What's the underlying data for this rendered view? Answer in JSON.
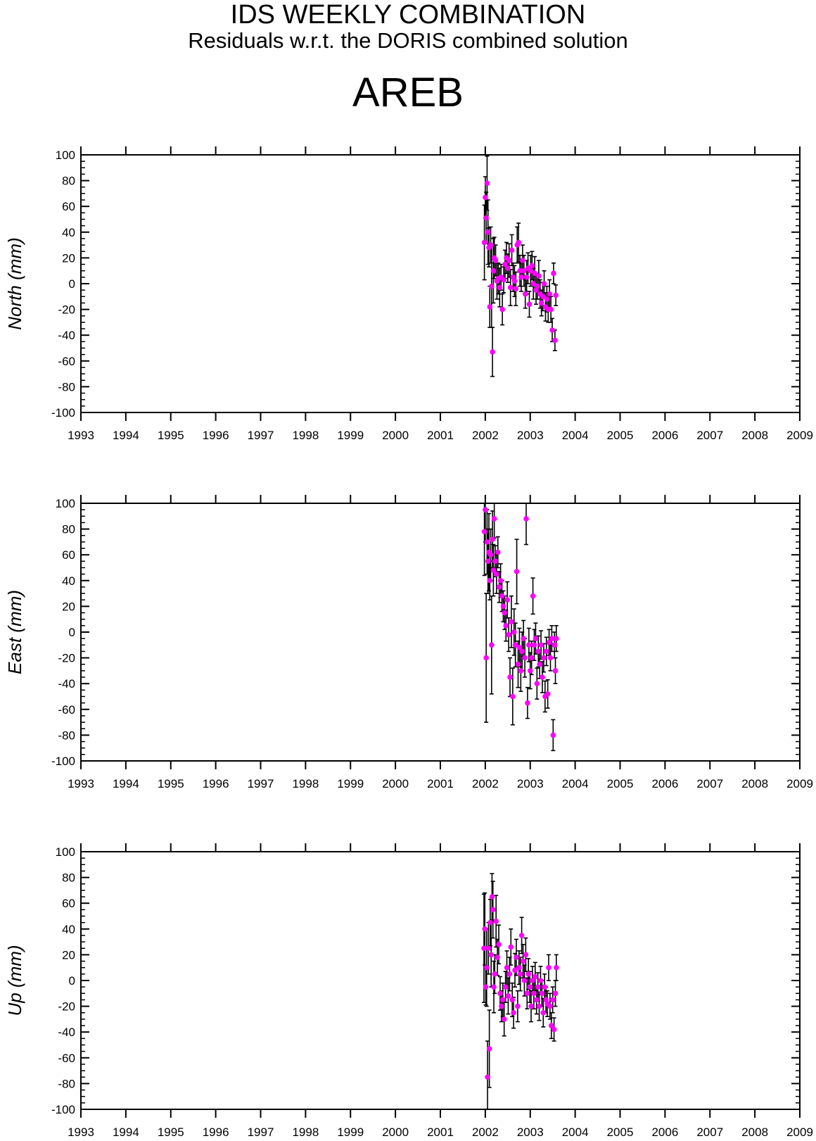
{
  "header": {
    "title": "IDS WEEKLY COMBINATION",
    "subtitle": "Residuals w.r.t. the DORIS combined solution",
    "station": "AREB"
  },
  "colors": {
    "point": "#ff00ff",
    "errorbar": "#000000",
    "axis": "#000000"
  },
  "chart_data": [
    {
      "type": "scatter",
      "ylabel": "North (mm)",
      "xlim": [
        1993,
        2009
      ],
      "ylim": [
        -100,
        100
      ],
      "xticks": [
        "1993",
        "1994",
        "1995",
        "1996",
        "1997",
        "1998",
        "1999",
        "2000",
        "2001",
        "2002",
        "2003",
        "2004",
        "2005",
        "2006",
        "2007",
        "2008",
        "2009"
      ],
      "yticks": [
        "-100",
        "-80",
        "-60",
        "-40",
        "-20",
        "0",
        "20",
        "40",
        "60",
        "80",
        "100"
      ],
      "grid": false,
      "points": [
        {
          "x": 2001.98,
          "y": 32,
          "err": 29
        },
        {
          "x": 2002.0,
          "y": 67,
          "err": 16
        },
        {
          "x": 2002.02,
          "y": 51,
          "err": 20
        },
        {
          "x": 2002.04,
          "y": 78,
          "err": 21
        },
        {
          "x": 2002.06,
          "y": 40,
          "err": 25
        },
        {
          "x": 2002.08,
          "y": 28,
          "err": 15
        },
        {
          "x": 2002.1,
          "y": -18,
          "err": 16
        },
        {
          "x": 2002.12,
          "y": 30,
          "err": 14
        },
        {
          "x": 2002.14,
          "y": -2,
          "err": 32
        },
        {
          "x": 2002.16,
          "y": -53,
          "err": 19
        },
        {
          "x": 2002.18,
          "y": 10,
          "err": 25
        },
        {
          "x": 2002.2,
          "y": 20,
          "err": 16
        },
        {
          "x": 2002.23,
          "y": 18,
          "err": 12
        },
        {
          "x": 2002.26,
          "y": 2,
          "err": 14
        },
        {
          "x": 2002.29,
          "y": 4,
          "err": 12
        },
        {
          "x": 2002.32,
          "y": -3,
          "err": 15
        },
        {
          "x": 2002.35,
          "y": 5,
          "err": 10
        },
        {
          "x": 2002.38,
          "y": -20,
          "err": 12
        },
        {
          "x": 2002.41,
          "y": 3,
          "err": 10
        },
        {
          "x": 2002.44,
          "y": 15,
          "err": 11
        },
        {
          "x": 2002.47,
          "y": 20,
          "err": 12
        },
        {
          "x": 2002.5,
          "y": 12,
          "err": 11
        },
        {
          "x": 2002.53,
          "y": 18,
          "err": 13
        },
        {
          "x": 2002.56,
          "y": -3,
          "err": 14
        },
        {
          "x": 2002.59,
          "y": 26,
          "err": 12
        },
        {
          "x": 2002.62,
          "y": 5,
          "err": 11
        },
        {
          "x": 2002.65,
          "y": 2,
          "err": 12
        },
        {
          "x": 2002.68,
          "y": -4,
          "err": 13
        },
        {
          "x": 2002.71,
          "y": 30,
          "err": 14
        },
        {
          "x": 2002.74,
          "y": 32,
          "err": 15
        },
        {
          "x": 2002.77,
          "y": 10,
          "err": 12
        },
        {
          "x": 2002.8,
          "y": 5,
          "err": 11
        },
        {
          "x": 2002.83,
          "y": 18,
          "err": 12
        },
        {
          "x": 2002.86,
          "y": 10,
          "err": 12
        },
        {
          "x": 2002.89,
          "y": -8,
          "err": 11
        },
        {
          "x": 2002.92,
          "y": 5,
          "err": 13
        },
        {
          "x": 2002.95,
          "y": 12,
          "err": 12
        },
        {
          "x": 2002.98,
          "y": -16,
          "err": 10
        },
        {
          "x": 2003.01,
          "y": 10,
          "err": 12
        },
        {
          "x": 2003.04,
          "y": 14,
          "err": 11
        },
        {
          "x": 2003.07,
          "y": 0,
          "err": 12
        },
        {
          "x": 2003.1,
          "y": 8,
          "err": 13
        },
        {
          "x": 2003.13,
          "y": -5,
          "err": 11
        },
        {
          "x": 2003.16,
          "y": -2,
          "err": 10
        },
        {
          "x": 2003.19,
          "y": 6,
          "err": 12
        },
        {
          "x": 2003.22,
          "y": -8,
          "err": 11
        },
        {
          "x": 2003.25,
          "y": -15,
          "err": 10
        },
        {
          "x": 2003.28,
          "y": -10,
          "err": 11
        },
        {
          "x": 2003.31,
          "y": 0,
          "err": 10
        },
        {
          "x": 2003.34,
          "y": -18,
          "err": 11
        },
        {
          "x": 2003.37,
          "y": -12,
          "err": 10
        },
        {
          "x": 2003.4,
          "y": -20,
          "err": 10
        },
        {
          "x": 2003.43,
          "y": -8,
          "err": 11
        },
        {
          "x": 2003.46,
          "y": -20,
          "err": 10
        },
        {
          "x": 2003.49,
          "y": -36,
          "err": 9
        },
        {
          "x": 2003.52,
          "y": 8,
          "err": 8
        },
        {
          "x": 2003.55,
          "y": -44,
          "err": 8
        },
        {
          "x": 2003.57,
          "y": -9,
          "err": 8
        }
      ]
    },
    {
      "type": "scatter",
      "ylabel": "East (mm)",
      "xlim": [
        1993,
        2009
      ],
      "ylim": [
        -100,
        100
      ],
      "xticks": [
        "1993",
        "1994",
        "1995",
        "1996",
        "1997",
        "1998",
        "1999",
        "2000",
        "2001",
        "2002",
        "2003",
        "2004",
        "2005",
        "2006",
        "2007",
        "2008",
        "2009"
      ],
      "yticks": [
        "-100",
        "-80",
        "-60",
        "-40",
        "-20",
        "0",
        "20",
        "40",
        "60",
        "80",
        "100"
      ],
      "grid": false,
      "points": [
        {
          "x": 2001.98,
          "y": 78,
          "err": 34
        },
        {
          "x": 2002.0,
          "y": 95,
          "err": 25
        },
        {
          "x": 2002.02,
          "y": -20,
          "err": 50
        },
        {
          "x": 2002.04,
          "y": 70,
          "err": 25
        },
        {
          "x": 2002.06,
          "y": 55,
          "err": 25
        },
        {
          "x": 2002.08,
          "y": 62,
          "err": 30
        },
        {
          "x": 2002.1,
          "y": 40,
          "err": 15
        },
        {
          "x": 2002.12,
          "y": 60,
          "err": 20
        },
        {
          "x": 2002.14,
          "y": -10,
          "err": 38
        },
        {
          "x": 2002.16,
          "y": 72,
          "err": 22
        },
        {
          "x": 2002.18,
          "y": 48,
          "err": 20
        },
        {
          "x": 2002.2,
          "y": 88,
          "err": 15
        },
        {
          "x": 2002.22,
          "y": 55,
          "err": 12
        },
        {
          "x": 2002.25,
          "y": 45,
          "err": 15
        },
        {
          "x": 2002.28,
          "y": 62,
          "err": 12
        },
        {
          "x": 2002.31,
          "y": 35,
          "err": 12
        },
        {
          "x": 2002.34,
          "y": 40,
          "err": 13
        },
        {
          "x": 2002.37,
          "y": 28,
          "err": 12
        },
        {
          "x": 2002.4,
          "y": 20,
          "err": 12
        },
        {
          "x": 2002.43,
          "y": 15,
          "err": 13
        },
        {
          "x": 2002.46,
          "y": 5,
          "err": 12
        },
        {
          "x": 2002.49,
          "y": 25,
          "err": 14
        },
        {
          "x": 2002.52,
          "y": -2,
          "err": 13
        },
        {
          "x": 2002.55,
          "y": -35,
          "err": 15
        },
        {
          "x": 2002.58,
          "y": 8,
          "err": 20
        },
        {
          "x": 2002.61,
          "y": -50,
          "err": 22
        },
        {
          "x": 2002.64,
          "y": 0,
          "err": 18
        },
        {
          "x": 2002.67,
          "y": -10,
          "err": 17
        },
        {
          "x": 2002.7,
          "y": 47,
          "err": 25
        },
        {
          "x": 2002.73,
          "y": -25,
          "err": 18
        },
        {
          "x": 2002.76,
          "y": -12,
          "err": 15
        },
        {
          "x": 2002.79,
          "y": -30,
          "err": 16
        },
        {
          "x": 2002.82,
          "y": -15,
          "err": 15
        },
        {
          "x": 2002.85,
          "y": -5,
          "err": 14
        },
        {
          "x": 2002.88,
          "y": -20,
          "err": 15
        },
        {
          "x": 2002.91,
          "y": 88,
          "err": 20
        },
        {
          "x": 2002.94,
          "y": -55,
          "err": 12
        },
        {
          "x": 2002.97,
          "y": -10,
          "err": 13
        },
        {
          "x": 2003.0,
          "y": -30,
          "err": 14
        },
        {
          "x": 2003.03,
          "y": -20,
          "err": 13
        },
        {
          "x": 2003.06,
          "y": 28,
          "err": 14
        },
        {
          "x": 2003.09,
          "y": -10,
          "err": 12
        },
        {
          "x": 2003.12,
          "y": -5,
          "err": 12
        },
        {
          "x": 2003.15,
          "y": -40,
          "err": 12
        },
        {
          "x": 2003.18,
          "y": -15,
          "err": 12
        },
        {
          "x": 2003.21,
          "y": -25,
          "err": 11
        },
        {
          "x": 2003.24,
          "y": -10,
          "err": 11
        },
        {
          "x": 2003.27,
          "y": -35,
          "err": 12
        },
        {
          "x": 2003.3,
          "y": -20,
          "err": 11
        },
        {
          "x": 2003.33,
          "y": -50,
          "err": 12
        },
        {
          "x": 2003.36,
          "y": -15,
          "err": 11
        },
        {
          "x": 2003.39,
          "y": -48,
          "err": 11
        },
        {
          "x": 2003.42,
          "y": -8,
          "err": 10
        },
        {
          "x": 2003.45,
          "y": -20,
          "err": 10
        },
        {
          "x": 2003.48,
          "y": -5,
          "err": 10
        },
        {
          "x": 2003.51,
          "y": -80,
          "err": 12
        },
        {
          "x": 2003.54,
          "y": -10,
          "err": 10
        },
        {
          "x": 2003.56,
          "y": -30,
          "err": 10
        },
        {
          "x": 2003.58,
          "y": -5,
          "err": 10
        }
      ]
    },
    {
      "type": "scatter",
      "ylabel": "Up (mm)",
      "xlim": [
        1993,
        2009
      ],
      "ylim": [
        -100,
        100
      ],
      "xticks": [
        "1993",
        "1994",
        "1995",
        "1996",
        "1997",
        "1998",
        "1999",
        "2000",
        "2001",
        "2002",
        "2003",
        "2004",
        "2005",
        "2006",
        "2007",
        "2008",
        "2009"
      ],
      "yticks": [
        "-100",
        "-80",
        "-60",
        "-40",
        "-20",
        "0",
        "20",
        "40",
        "60",
        "80",
        "100"
      ],
      "grid": false,
      "points": [
        {
          "x": 2001.97,
          "y": 25,
          "err": 42
        },
        {
          "x": 2001.99,
          "y": 40,
          "err": 28
        },
        {
          "x": 2002.01,
          "y": -5,
          "err": 14
        },
        {
          "x": 2002.03,
          "y": 10,
          "err": 30
        },
        {
          "x": 2002.05,
          "y": -75,
          "err": 28
        },
        {
          "x": 2002.07,
          "y": 25,
          "err": 20
        },
        {
          "x": 2002.09,
          "y": -53,
          "err": 30
        },
        {
          "x": 2002.11,
          "y": 45,
          "err": 18
        },
        {
          "x": 2002.13,
          "y": 20,
          "err": 25
        },
        {
          "x": 2002.15,
          "y": 65,
          "err": 18
        },
        {
          "x": 2002.17,
          "y": 55,
          "err": 22
        },
        {
          "x": 2002.19,
          "y": -5,
          "err": 20
        },
        {
          "x": 2002.21,
          "y": 5,
          "err": 15
        },
        {
          "x": 2002.24,
          "y": 46,
          "err": 20
        },
        {
          "x": 2002.27,
          "y": 18,
          "err": 14
        },
        {
          "x": 2002.3,
          "y": 28,
          "err": 15
        },
        {
          "x": 2002.33,
          "y": -10,
          "err": 13
        },
        {
          "x": 2002.36,
          "y": -20,
          "err": 12
        },
        {
          "x": 2002.39,
          "y": -15,
          "err": 13
        },
        {
          "x": 2002.42,
          "y": -30,
          "err": 13
        },
        {
          "x": 2002.45,
          "y": -5,
          "err": 12
        },
        {
          "x": 2002.48,
          "y": 10,
          "err": 13
        },
        {
          "x": 2002.51,
          "y": -12,
          "err": 14
        },
        {
          "x": 2002.54,
          "y": 5,
          "err": 13
        },
        {
          "x": 2002.57,
          "y": 26,
          "err": 14
        },
        {
          "x": 2002.6,
          "y": -15,
          "err": 13
        },
        {
          "x": 2002.63,
          "y": -25,
          "err": 12
        },
        {
          "x": 2002.66,
          "y": 8,
          "err": 13
        },
        {
          "x": 2002.69,
          "y": 18,
          "err": 14
        },
        {
          "x": 2002.72,
          "y": -20,
          "err": 12
        },
        {
          "x": 2002.75,
          "y": 10,
          "err": 13
        },
        {
          "x": 2002.78,
          "y": 5,
          "err": 13
        },
        {
          "x": 2002.81,
          "y": 35,
          "err": 14
        },
        {
          "x": 2002.84,
          "y": 15,
          "err": 13
        },
        {
          "x": 2002.87,
          "y": 0,
          "err": 12
        },
        {
          "x": 2002.9,
          "y": 20,
          "err": 13
        },
        {
          "x": 2002.93,
          "y": -10,
          "err": 12
        },
        {
          "x": 2002.96,
          "y": 5,
          "err": 12
        },
        {
          "x": 2002.99,
          "y": -5,
          "err": 12
        },
        {
          "x": 2003.02,
          "y": -20,
          "err": 12
        },
        {
          "x": 2003.05,
          "y": 0,
          "err": 11
        },
        {
          "x": 2003.08,
          "y": -10,
          "err": 12
        },
        {
          "x": 2003.11,
          "y": 3,
          "err": 11
        },
        {
          "x": 2003.14,
          "y": -15,
          "err": 11
        },
        {
          "x": 2003.17,
          "y": -5,
          "err": 11
        },
        {
          "x": 2003.2,
          "y": -20,
          "err": 11
        },
        {
          "x": 2003.23,
          "y": 0,
          "err": 11
        },
        {
          "x": 2003.26,
          "y": -10,
          "err": 10
        },
        {
          "x": 2003.29,
          "y": -25,
          "err": 11
        },
        {
          "x": 2003.32,
          "y": -5,
          "err": 10
        },
        {
          "x": 2003.35,
          "y": -15,
          "err": 10
        },
        {
          "x": 2003.38,
          "y": -18,
          "err": 10
        },
        {
          "x": 2003.41,
          "y": 10,
          "err": 10
        },
        {
          "x": 2003.44,
          "y": -20,
          "err": 10
        },
        {
          "x": 2003.47,
          "y": -35,
          "err": 10
        },
        {
          "x": 2003.5,
          "y": -15,
          "err": 10
        },
        {
          "x": 2003.53,
          "y": -38,
          "err": 9
        },
        {
          "x": 2003.56,
          "y": -10,
          "err": 10
        },
        {
          "x": 2003.58,
          "y": 10,
          "err": 10
        }
      ]
    }
  ]
}
